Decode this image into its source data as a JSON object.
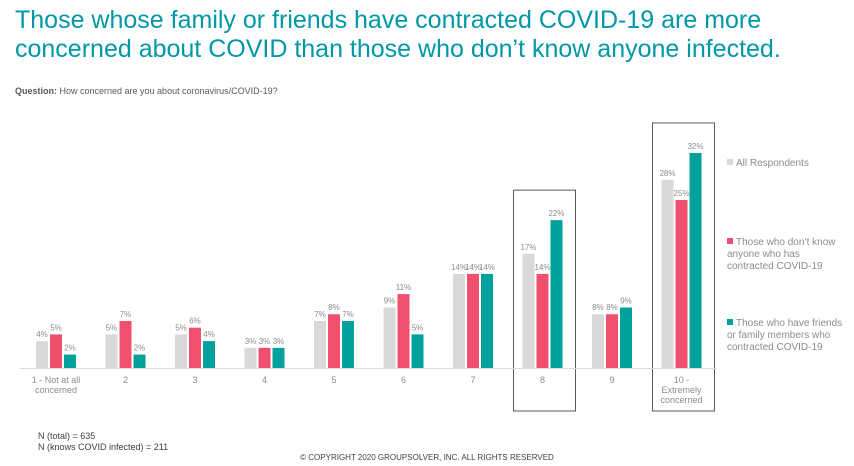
{
  "title": "Those whose family or friends have contracted COVID-19 are more concerned about COVID than those who don’t know anyone infected.",
  "question_label": "Question:",
  "question_text": " How concerned are you about coronavirus/COVID-19?",
  "legend": [
    {
      "label": "All Respondents",
      "color": "#d9d9d9"
    },
    {
      "label": "Those who don’t know anyone who has contracted COVID-19",
      "color": "#f0506e"
    },
    {
      "label": "Those who have friends or family members who contracted COVID-19",
      "color": "#00a19a"
    }
  ],
  "footnotes": {
    "total": "N (total) = 635",
    "infected": "N (knows COVID infected) = 211"
  },
  "copyright": "© COPYRIGHT 2020 GROUPSOLVER, INC. ALL RIGHTS RESERVED",
  "chart_data": {
    "type": "bar",
    "categories": [
      "1 - Not at all concerned",
      "2",
      "3",
      "4",
      "5",
      "6",
      "7",
      "8",
      "9",
      "10 - Extremely concerned"
    ],
    "category_lines": [
      [
        "1 - Not at all",
        "concerned"
      ],
      [
        "2"
      ],
      [
        "3"
      ],
      [
        "4"
      ],
      [
        "5"
      ],
      [
        "6"
      ],
      [
        "7"
      ],
      [
        "8"
      ],
      [
        "9"
      ],
      [
        "10 -",
        "Extremely",
        "concerned"
      ]
    ],
    "series": [
      {
        "name": "All Respondents",
        "values": [
          4,
          5,
          5,
          3,
          7,
          9,
          14,
          17,
          8,
          28
        ],
        "color": "#d9d9d9"
      },
      {
        "name": "Those who don’t know anyone who has contracted COVID-19",
        "values": [
          5,
          7,
          6,
          3,
          8,
          11,
          14,
          14,
          8,
          25
        ],
        "color": "#f0506e"
      },
      {
        "name": "Those who have friends or family members who contracted COVID-19",
        "values": [
          2,
          2,
          4,
          3,
          7,
          5,
          14,
          22,
          9,
          32
        ],
        "color": "#00a19a"
      }
    ],
    "value_suffix": "%",
    "highlighted_categories": [
      "8",
      "10 - Extremely concerned"
    ],
    "ylim": [
      0,
      32
    ],
    "grid": false,
    "legend_position": "right"
  }
}
